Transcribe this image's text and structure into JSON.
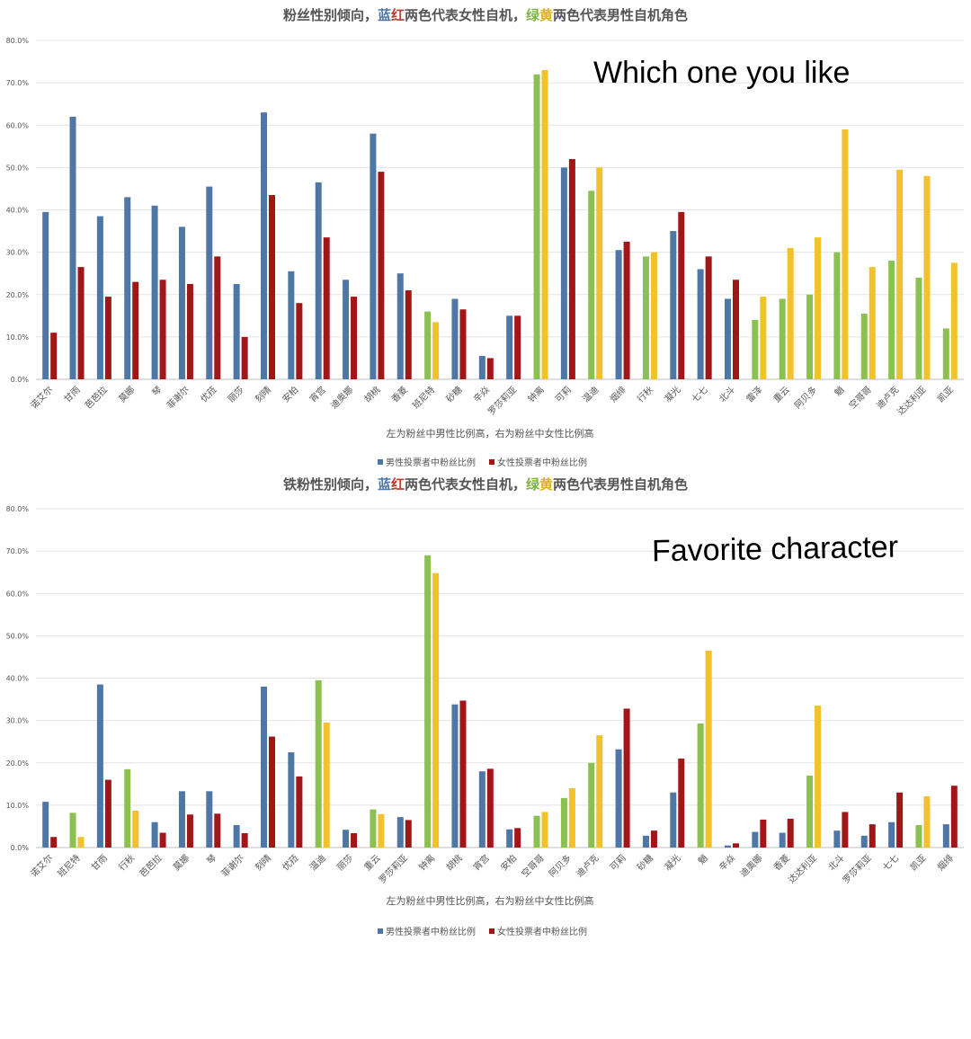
{
  "overlays": {
    "top": "Which one you like",
    "bottom": "Favorite character"
  },
  "colors": {
    "blue": "#4f77a6",
    "red": "#a11717",
    "green": "#8cc152",
    "yellow": "#f2c12e",
    "grid": "#e4e4e4",
    "text": "#555555"
  },
  "chart_data": [
    {
      "type": "bar",
      "title_segments": [
        {
          "text": "粉丝性别倾向，",
          "color": "#555555"
        },
        {
          "text": "蓝",
          "color": "#4f77a6"
        },
        {
          "text": "红",
          "color": "#c0392b"
        },
        {
          "text": "两色代表女性自机，",
          "color": "#555555"
        },
        {
          "text": "绿",
          "color": "#7cb342"
        },
        {
          "text": "黄",
          "color": "#e0b020"
        },
        {
          "text": "两色代表男性自机角色",
          "color": "#555555"
        }
      ],
      "xlabel": "左为粉丝中男性比例高，右为粉丝中女性比例高",
      "legend": [
        "男性投票者中粉丝比例",
        "女性投票者中粉丝比例"
      ],
      "yticks": [
        "0.0%",
        "10.0%",
        "20.0%",
        "30.0%",
        "40.0%",
        "50.0%",
        "60.0%",
        "70.0%",
        "80.0%"
      ],
      "ylim": [
        0,
        80
      ],
      "categories": [
        "诺艾尔",
        "甘雨",
        "芭芭拉",
        "莫娜",
        "琴",
        "菲谢尔",
        "优菈",
        "丽莎",
        "刻晴",
        "安柏",
        "宵宫",
        "迪奥娜",
        "胡桃",
        "香菱",
        "班尼特",
        "砂糖",
        "辛焱",
        "罗莎莉亚",
        "钟离",
        "可莉",
        "温迪",
        "烟绯",
        "行秋",
        "凝光",
        "七七",
        "北斗",
        "雷泽",
        "重云",
        "阿贝多",
        "魈",
        "空哥哥",
        "迪卢克",
        "达达利亚",
        "凯亚"
      ],
      "male_char": [
        false,
        false,
        false,
        false,
        false,
        false,
        false,
        false,
        false,
        false,
        false,
        false,
        false,
        false,
        true,
        false,
        false,
        false,
        true,
        false,
        true,
        false,
        true,
        false,
        false,
        false,
        true,
        true,
        true,
        true,
        true,
        true,
        true,
        true
      ],
      "series": [
        {
          "name": "男性投票者中粉丝比例",
          "values": [
            39.5,
            62,
            38.5,
            43,
            41,
            36,
            45.5,
            22.5,
            63,
            25.5,
            46.5,
            23.5,
            58,
            25,
            16,
            19,
            5.5,
            15,
            72,
            50,
            44.5,
            30.5,
            29,
            35,
            26,
            19,
            14,
            19,
            20,
            30,
            15.5,
            28,
            24,
            12
          ]
        },
        {
          "name": "女性投票者中粉丝比例",
          "values": [
            11,
            26.5,
            19.5,
            23,
            23.5,
            22.5,
            29,
            10,
            43.5,
            18,
            33.5,
            19.5,
            49,
            21,
            13.5,
            16.5,
            5,
            15,
            73,
            52,
            50,
            32.5,
            30,
            39.5,
            29,
            23.5,
            19.5,
            31,
            33.5,
            59,
            26.5,
            49.5,
            48,
            27.5
          ]
        }
      ]
    },
    {
      "type": "bar",
      "title_segments": [
        {
          "text": "铁粉性别倾向，",
          "color": "#555555"
        },
        {
          "text": "蓝",
          "color": "#4f77a6"
        },
        {
          "text": "红",
          "color": "#c0392b"
        },
        {
          "text": "两色代表女性自机，",
          "color": "#555555"
        },
        {
          "text": "绿",
          "color": "#7cb342"
        },
        {
          "text": "黄",
          "color": "#e0b020"
        },
        {
          "text": "两色代表男性自机角色",
          "color": "#555555"
        }
      ],
      "xlabel": "左为粉丝中男性比例高，右为粉丝中女性比例高",
      "legend": [
        "男性投票者中粉丝比例",
        "女性投票者中粉丝比例"
      ],
      "yticks": [
        "0.0%",
        "10.0%",
        "20.0%",
        "30.0%",
        "40.0%",
        "50.0%",
        "60.0%",
        "70.0%",
        "80.0%"
      ],
      "ylim": [
        0,
        80
      ],
      "categories": [
        "诺艾尔",
        "班尼特",
        "甘雨",
        "行秋",
        "芭芭拉",
        "莫娜",
        "琴",
        "菲谢尔",
        "刻晴",
        "优菈",
        "温迪",
        "丽莎",
        "重云",
        "罗莎莉亚",
        "钟离",
        "胡桃",
        "宵宫",
        "安柏",
        "空哥哥",
        "阿贝多",
        "迪卢克",
        "可莉",
        "砂糖",
        "凝光",
        "魈",
        "辛焱",
        "迪奥娜",
        "香菱",
        "达达利亚",
        "北斗",
        "罗莎莉亚",
        "七七",
        "凯亚",
        "烟绯"
      ],
      "male_char": [
        false,
        true,
        false,
        true,
        false,
        false,
        false,
        false,
        false,
        false,
        true,
        false,
        true,
        false,
        true,
        false,
        false,
        false,
        true,
        true,
        true,
        false,
        false,
        false,
        true,
        false,
        false,
        false,
        true,
        false,
        false,
        false,
        true,
        false
      ],
      "series": [
        {
          "name": "男性投票者中粉丝比例",
          "values": [
            10.8,
            8.2,
            38.5,
            18.5,
            6,
            13.3,
            13.3,
            5.3,
            38,
            22.5,
            39.5,
            4.2,
            9,
            7.2,
            69,
            33.8,
            18,
            4.3,
            7.5,
            11.7,
            20,
            23.2,
            2.8,
            13,
            29.3,
            0.5,
            3.7,
            3.5,
            17,
            4,
            2.8,
            6,
            5.3,
            5.5
          ]
        },
        {
          "name": "女性投票者中粉丝比例",
          "values": [
            2.5,
            2.5,
            16,
            8.7,
            3.5,
            7.8,
            8,
            3.4,
            26.2,
            16.8,
            29.5,
            3.4,
            7.9,
            6.5,
            64.8,
            34.7,
            18.6,
            4.6,
            8.4,
            14,
            26.5,
            32.8,
            4,
            21,
            46.5,
            1,
            6.6,
            6.8,
            33.5,
            8.4,
            5.5,
            13,
            12.1,
            14.6
          ]
        }
      ]
    }
  ]
}
